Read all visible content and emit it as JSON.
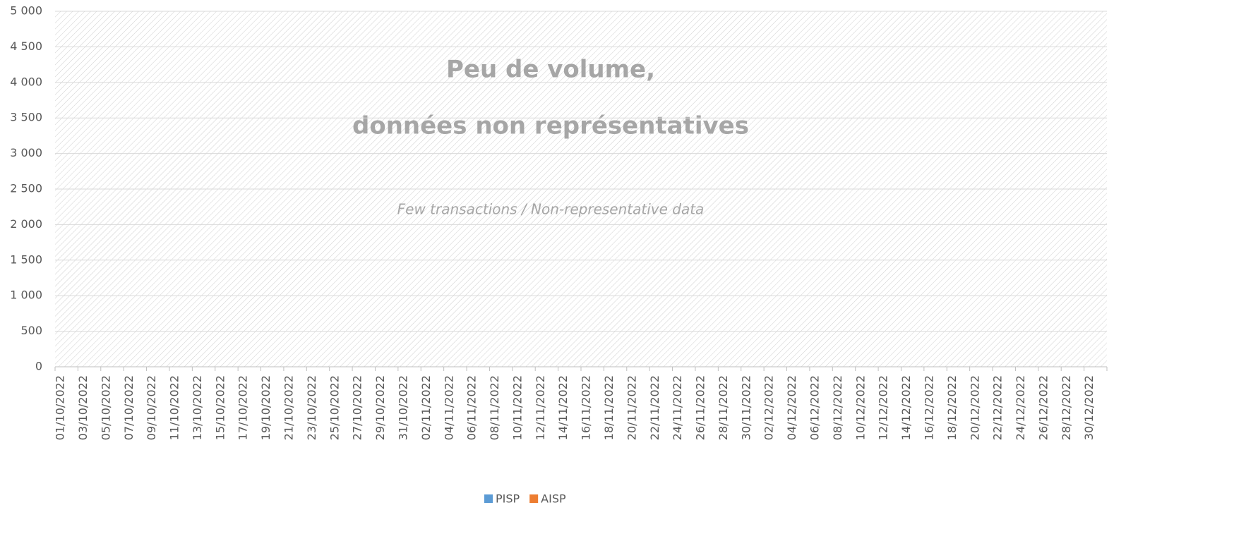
{
  "chart_data": {
    "type": "bar",
    "annotations": [
      "Peu de volume,",
      "données non représentatives",
      "Few transactions / Non-representative data"
    ],
    "categories": [
      "01/10/2022",
      null,
      "03/10/2022",
      null,
      "05/10/2022",
      null,
      "07/10/2022",
      null,
      "09/10/2022",
      null,
      "11/10/2022",
      null,
      "13/10/2022",
      null,
      "15/10/2022",
      null,
      "17/10/2022",
      null,
      "19/10/2022",
      null,
      "21/10/2022",
      null,
      "23/10/2022",
      null,
      "25/10/2022",
      null,
      "27/10/2022",
      null,
      "29/10/2022",
      null,
      "31/10/2022",
      null,
      "02/11/2022",
      null,
      "04/11/2022",
      null,
      "06/11/2022",
      null,
      "08/11/2022",
      null,
      "10/11/2022",
      null,
      "12/11/2022",
      null,
      "14/11/2022",
      null,
      "16/11/2022",
      null,
      "18/11/2022",
      null,
      "20/11/2022",
      null,
      "22/11/2022",
      null,
      "24/11/2022",
      null,
      "26/11/2022",
      null,
      "28/11/2022",
      null,
      "30/11/2022",
      null,
      "02/12/2022",
      null,
      "04/12/2022",
      null,
      "06/12/2022",
      null,
      "08/12/2022",
      null,
      "10/12/2022",
      null,
      "12/12/2022",
      null,
      "14/12/2022",
      null,
      "16/12/2022",
      null,
      "18/12/2022",
      null,
      "20/12/2022",
      null,
      "22/12/2022",
      null,
      "24/12/2022",
      null,
      "26/12/2022",
      null,
      "28/12/2022",
      null,
      "30/12/2022",
      null
    ],
    "series": [
      {
        "name": "PISP",
        "color": "#5b9bd5",
        "values": [
          0,
          0,
          0,
          0,
          0,
          0,
          0,
          0,
          0,
          0,
          0,
          0,
          0,
          0,
          0,
          0,
          0,
          0,
          0,
          0,
          0,
          0,
          0,
          0,
          0,
          0,
          0,
          0,
          0,
          0,
          0,
          0,
          0,
          0,
          0,
          0,
          0,
          0,
          0,
          0,
          0,
          0,
          0,
          0,
          0,
          0,
          0,
          0,
          0,
          0,
          0,
          0,
          0,
          0,
          0,
          0,
          0,
          0,
          0,
          0,
          0,
          0,
          0,
          0,
          0,
          0,
          0,
          0,
          0,
          0,
          0,
          0,
          0,
          0,
          0,
          0,
          0,
          0,
          0,
          0,
          0,
          0,
          0,
          0,
          0,
          0,
          0,
          0,
          0,
          0,
          0,
          0
        ]
      },
      {
        "name": "AISP",
        "color": "#ed7d31",
        "values": [
          0,
          0,
          0,
          0,
          0,
          0,
          0,
          0,
          0,
          0,
          0,
          0,
          0,
          0,
          0,
          0,
          0,
          0,
          0,
          0,
          0,
          0,
          0,
          0,
          0,
          0,
          0,
          0,
          0,
          0,
          0,
          0,
          0,
          0,
          0,
          0,
          0,
          0,
          0,
          0,
          0,
          0,
          0,
          0,
          0,
          0,
          0,
          0,
          0,
          0,
          0,
          0,
          0,
          0,
          0,
          0,
          0,
          0,
          0,
          0,
          0,
          0,
          0,
          0,
          0,
          0,
          0,
          0,
          0,
          0,
          0,
          0,
          0,
          0,
          0,
          0,
          0,
          0,
          0,
          0,
          0,
          0,
          0,
          0,
          0,
          0,
          0,
          0,
          0,
          0,
          0,
          0
        ]
      }
    ],
    "ylim": [
      0,
      5000
    ],
    "yticks": [
      0,
      500,
      {
        "value": 1000,
        "label": "1 000"
      },
      {
        "value": 1500,
        "label": "1 500"
      },
      {
        "value": 2000,
        "label": "2 000"
      },
      {
        "value": 2500,
        "label": "2 500"
      },
      {
        "value": 3000,
        "label": "3 000"
      },
      {
        "value": 3500,
        "label": "3 500"
      },
      {
        "value": 4000,
        "label": "4 000"
      },
      {
        "value": 4500,
        "label": "4 500"
      },
      {
        "value": 5000,
        "label": "5 000"
      }
    ],
    "grid": true,
    "legend": "bottom"
  }
}
